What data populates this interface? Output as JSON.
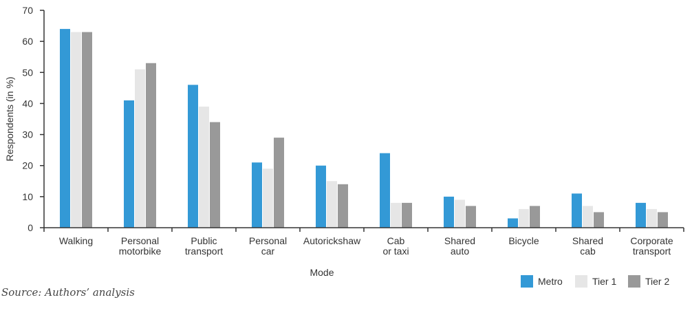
{
  "chart_data": {
    "type": "bar",
    "xlabel": "Mode",
    "ylabel": "Respondents (in %)",
    "ylim": [
      0,
      70
    ],
    "yticks": [
      0,
      10,
      20,
      30,
      40,
      50,
      60,
      70
    ],
    "categories": [
      [
        "Walking"
      ],
      [
        "Personal",
        "motorbike"
      ],
      [
        "Public",
        "transport"
      ],
      [
        "Personal",
        "car"
      ],
      [
        "Autorickshaw"
      ],
      [
        "Cab",
        "or taxi"
      ],
      [
        "Shared",
        "auto"
      ],
      [
        "Bicycle"
      ],
      [
        "Shared",
        "cab"
      ],
      [
        "Corporate",
        "transport"
      ]
    ],
    "series": [
      {
        "name": "Metro",
        "color": "#3399d6",
        "values": [
          64,
          41,
          46,
          21,
          20,
          24,
          10,
          3,
          11,
          8
        ]
      },
      {
        "name": "Tier 1",
        "color": "#e6e6e6",
        "values": [
          63,
          51,
          39,
          19,
          15,
          8,
          9,
          6,
          7,
          6
        ]
      },
      {
        "name": "Tier 2",
        "color": "#999999",
        "values": [
          63,
          53,
          34,
          29,
          14,
          8,
          7,
          7,
          5,
          5
        ]
      }
    ],
    "legend_position": "bottom-right",
    "grid": false
  },
  "source": "Source: Authors’ analysis"
}
